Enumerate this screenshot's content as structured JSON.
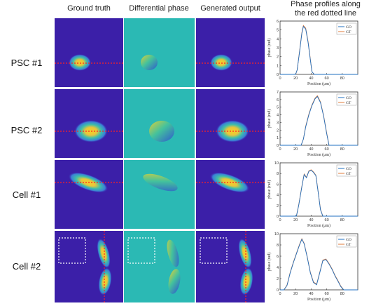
{
  "columns": {
    "ground_truth": "Ground truth",
    "differential_phase": "Differential phase",
    "generated_output": "Generated output",
    "profiles_line1": "Phase profiles along",
    "profiles_line2": "the red dotted line"
  },
  "rows": [
    {
      "label": "PSC #1"
    },
    {
      "label": "PSC #2"
    },
    {
      "label": "Cell #1"
    },
    {
      "label": "Cell #2"
    }
  ],
  "colors": {
    "bg_dark_blue": "#3b1fa8",
    "bg_teal": "#2bb9b4",
    "go": "#1f6fc0",
    "gt": "#e07b39",
    "red_line": "#ff2020"
  },
  "chart_data": [
    {
      "type": "line",
      "xlabel": "Position (μm)",
      "ylabel": "phase (rad)",
      "xlim": [
        0,
        100
      ],
      "ylim": [
        0,
        6
      ],
      "xticks": [
        0,
        20,
        40,
        60,
        80
      ],
      "yticks": [
        0,
        1,
        2,
        3,
        4,
        5,
        6
      ],
      "legend": [
        "GO",
        "GT"
      ],
      "legend_position": "top-right",
      "series": [
        {
          "name": "GO",
          "x": [
            0,
            20,
            22,
            25,
            28,
            30,
            33,
            36,
            39,
            41,
            44,
            100
          ],
          "y": [
            0,
            0,
            0.5,
            2.5,
            4.6,
            5.4,
            5.1,
            3.6,
            1.6,
            0.3,
            0,
            0
          ]
        },
        {
          "name": "GT",
          "x": [
            0,
            20,
            22,
            25,
            28,
            30,
            33,
            36,
            39,
            41,
            44,
            100
          ],
          "y": [
            0,
            0,
            0.5,
            2.6,
            4.7,
            5.5,
            5.2,
            3.7,
            1.7,
            0.3,
            0,
            0
          ]
        }
      ]
    },
    {
      "type": "line",
      "xlabel": "Position (μm)",
      "ylabel": "phase (rad)",
      "xlim": [
        0,
        100
      ],
      "ylim": [
        0,
        7
      ],
      "xticks": [
        0,
        20,
        40,
        60,
        80
      ],
      "yticks": [
        0,
        1,
        2,
        3,
        4,
        5,
        6,
        7
      ],
      "legend": [
        "GO",
        "GT"
      ],
      "legend_position": "top-right",
      "series": [
        {
          "name": "GO",
          "x": [
            0,
            27,
            30,
            33,
            37,
            41,
            45,
            48,
            52,
            56,
            60,
            63,
            100
          ],
          "y": [
            0,
            0,
            0.8,
            2.4,
            4.0,
            5.2,
            6.1,
            6.4,
            5.6,
            3.8,
            1.5,
            0,
            0
          ]
        },
        {
          "name": "GT",
          "x": [
            0,
            27,
            30,
            33,
            37,
            41,
            45,
            48,
            52,
            56,
            60,
            63,
            100
          ],
          "y": [
            0,
            0,
            0.8,
            2.5,
            4.1,
            5.3,
            6.2,
            6.5,
            5.7,
            3.9,
            1.6,
            0,
            0
          ]
        }
      ]
    },
    {
      "type": "line",
      "xlabel": "Position (μm)",
      "ylabel": "phase (rad)",
      "xlim": [
        0,
        100
      ],
      "ylim": [
        0,
        10
      ],
      "xticks": [
        0,
        20,
        40,
        60,
        80
      ],
      "yticks": [
        0,
        2,
        4,
        6,
        8,
        10
      ],
      "legend": [
        "GO",
        "GT"
      ],
      "legend_position": "top-right",
      "series": [
        {
          "name": "GO",
          "x": [
            0,
            21,
            24,
            28,
            31,
            34,
            37,
            40,
            43,
            46,
            49,
            52,
            55,
            100
          ],
          "y": [
            0,
            0,
            2.0,
            5.5,
            7.8,
            7.2,
            8.4,
            8.6,
            8.2,
            7.6,
            4.5,
            1.2,
            0,
            0
          ]
        },
        {
          "name": "GT",
          "x": [
            0,
            21,
            24,
            28,
            31,
            34,
            37,
            40,
            43,
            46,
            49,
            52,
            55,
            100
          ],
          "y": [
            0,
            0,
            2.1,
            5.6,
            7.9,
            7.3,
            8.5,
            8.7,
            8.3,
            7.7,
            4.6,
            1.3,
            0,
            0
          ]
        }
      ]
    },
    {
      "type": "line",
      "xlabel": "Position (μm)",
      "ylabel": "phase (rad)",
      "xlim": [
        0,
        100
      ],
      "ylim": [
        0,
        10
      ],
      "xticks": [
        0,
        20,
        40,
        60,
        80
      ],
      "yticks": [
        0,
        2,
        4,
        6,
        8,
        10
      ],
      "legend": [
        "GO",
        "GT"
      ],
      "legend_position": "top-right",
      "series": [
        {
          "name": "GO",
          "x": [
            0,
            5,
            9,
            13,
            17,
            21,
            25,
            28,
            31,
            35,
            39,
            43,
            47,
            51,
            55,
            59,
            63,
            67,
            71,
            75,
            78,
            82,
            100
          ],
          "y": [
            0,
            0,
            0.8,
            3.0,
            4.8,
            6.4,
            8.0,
            9.0,
            8.2,
            5.8,
            3.0,
            1.3,
            0.9,
            3.0,
            5.2,
            5.4,
            4.6,
            3.6,
            2.4,
            1.4,
            0.6,
            0,
            0
          ]
        },
        {
          "name": "GT",
          "x": [
            0,
            5,
            9,
            13,
            17,
            21,
            25,
            28,
            31,
            35,
            39,
            43,
            47,
            51,
            55,
            59,
            63,
            67,
            71,
            75,
            78,
            82,
            100
          ],
          "y": [
            0,
            0,
            0.9,
            3.1,
            4.9,
            6.5,
            8.1,
            9.1,
            8.3,
            5.9,
            3.1,
            1.4,
            1.0,
            3.1,
            5.3,
            5.5,
            4.7,
            3.7,
            2.5,
            1.5,
            0.7,
            0,
            0
          ]
        }
      ]
    }
  ]
}
